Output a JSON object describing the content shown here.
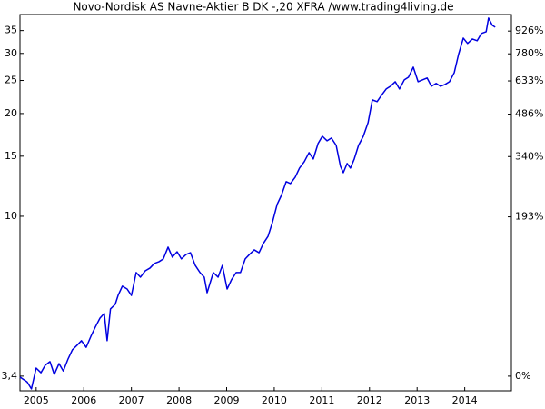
{
  "chart_data": {
    "type": "line",
    "title": "Novo-Nordisk AS Navne-Aktier B DK -,20 XFRA /www.trading4living.de",
    "color": "#0000e0",
    "yscale": "log",
    "y2scale": "log-return",
    "x": [
      2004.66,
      2004.81,
      2004.9,
      2005.0,
      2005.1,
      2005.19,
      2005.29,
      2005.38,
      2005.48,
      2005.57,
      2005.67,
      2005.76,
      2005.86,
      2005.95,
      2006.05,
      2006.15,
      2006.24,
      2006.34,
      2006.43,
      2006.49,
      2006.56,
      2006.66,
      2006.72,
      2006.81,
      2006.91,
      2007.0,
      2007.06,
      2007.1,
      2007.19,
      2007.29,
      2007.39,
      2007.48,
      2007.58,
      2007.67,
      2007.77,
      2007.86,
      2007.96,
      2008.05,
      2008.15,
      2008.24,
      2008.34,
      2008.44,
      2008.53,
      2008.59,
      2008.66,
      2008.72,
      2008.82,
      2008.91,
      2009.01,
      2009.1,
      2009.2,
      2009.29,
      2009.39,
      2009.48,
      2009.58,
      2009.68,
      2009.77,
      2009.87,
      2009.96,
      2010.06,
      2010.15,
      2010.25,
      2010.34,
      2010.44,
      2010.53,
      2010.63,
      2010.73,
      2010.82,
      2010.92,
      2011.01,
      2011.11,
      2011.2,
      2011.3,
      2011.39,
      2011.45,
      2011.53,
      2011.6,
      2011.68,
      2011.77,
      2011.87,
      2011.97,
      2012.06,
      2012.16,
      2012.25,
      2012.35,
      2012.44,
      2012.54,
      2012.63,
      2012.73,
      2012.82,
      2012.92,
      2013.02,
      2013.11,
      2013.21,
      2013.3,
      2013.4,
      2013.49,
      2013.59,
      2013.68,
      2013.78,
      2013.87,
      2013.97,
      2014.06,
      2014.16,
      2014.26,
      2014.35,
      2014.45,
      2014.5,
      2014.58,
      2014.64
    ],
    "values": [
      3.38,
      3.27,
      3.12,
      3.59,
      3.48,
      3.66,
      3.75,
      3.44,
      3.7,
      3.52,
      3.82,
      4.06,
      4.19,
      4.32,
      4.13,
      4.45,
      4.73,
      5.03,
      5.19,
      4.32,
      5.35,
      5.52,
      5.86,
      6.24,
      6.12,
      5.86,
      6.43,
      6.84,
      6.63,
      6.92,
      7.05,
      7.27,
      7.36,
      7.5,
      8.12,
      7.59,
      7.87,
      7.5,
      7.73,
      7.82,
      7.18,
      6.84,
      6.63,
      5.97,
      6.43,
      6.84,
      6.63,
      7.18,
      6.12,
      6.51,
      6.84,
      6.84,
      7.5,
      7.73,
      7.97,
      7.82,
      8.32,
      8.74,
      9.58,
      10.83,
      11.52,
      12.63,
      12.47,
      13.02,
      13.84,
      14.45,
      15.36,
      14.72,
      16.34,
      17.16,
      16.64,
      16.95,
      16.14,
      14.01,
      13.42,
      14.28,
      13.84,
      14.72,
      16.14,
      17.16,
      18.81,
      21.93,
      21.67,
      22.61,
      23.6,
      24.04,
      24.79,
      23.6,
      25.09,
      25.57,
      27.35,
      24.79,
      25.09,
      25.42,
      24.04,
      24.5,
      24.04,
      24.35,
      24.79,
      26.35,
      29.8,
      33.27,
      32.09,
      33.07,
      32.68,
      34.32,
      34.73,
      38.08,
      36.26,
      35.83
    ],
    "xlim": [
      2004.66,
      2014.98
    ],
    "xticks": [
      2005,
      2006,
      2007,
      2008,
      2009,
      2010,
      2011,
      2012,
      2013,
      2014
    ],
    "ylim": [
      3.08,
      39.0
    ],
    "yticks": [
      {
        "value": 3.4,
        "label": "3,4"
      },
      10,
      15,
      20,
      25,
      30,
      35
    ],
    "y2lim": [
      -9.4,
      1047
    ],
    "y2ticks": [
      {
        "value": 0,
        "label": "0%"
      },
      {
        "value": 193,
        "label": "193%"
      },
      {
        "value": 340,
        "label": "340%"
      },
      {
        "value": 486,
        "label": "486%"
      },
      {
        "value": 633,
        "label": "633%"
      },
      {
        "value": 780,
        "label": "780%"
      },
      {
        "value": 926,
        "label": "926%"
      }
    ]
  }
}
